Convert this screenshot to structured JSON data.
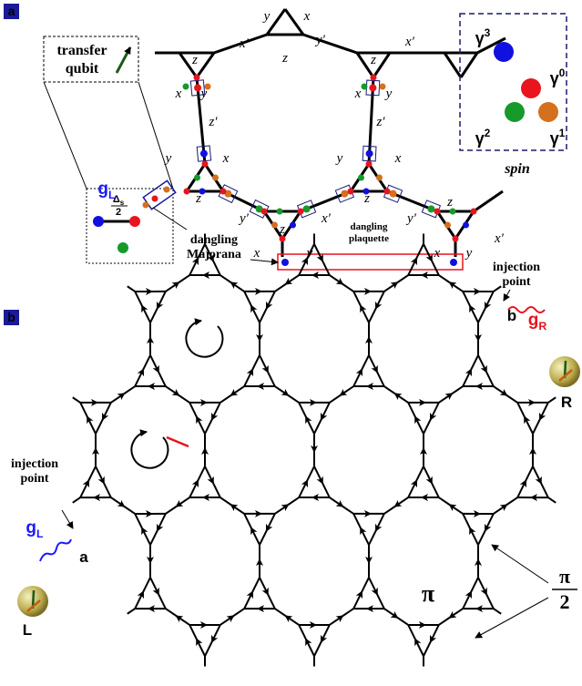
{
  "panel_a": {
    "label": "a",
    "transfer_qubit": [
      "transfer",
      "qubit"
    ],
    "coupling": {
      "base": "g",
      "sub": "L"
    },
    "gap": {
      "num_base": "Δ",
      "num_sub": "s",
      "den": "2"
    },
    "dangling_majorana": [
      "dangling",
      "Majorana"
    ],
    "dangling_plaquette": [
      "dangling",
      "plaquette"
    ],
    "bond_labels": [
      "y",
      "x",
      "x′",
      "y′",
      "x′",
      "z",
      "z",
      "z",
      "x",
      "y",
      "x",
      "y",
      "z′",
      "z′",
      "y",
      "x",
      "y",
      "x",
      "z",
      "z",
      "z",
      "y′",
      "x′",
      "y′",
      "z",
      "x",
      "y",
      "x",
      "y",
      "x′"
    ],
    "spin": {
      "title": "spin",
      "majoranas": [
        {
          "base": "γ",
          "sup": "3"
        },
        {
          "base": "γ",
          "sup": "0"
        },
        {
          "base": "γ",
          "sup": "2"
        },
        {
          "base": "γ",
          "sup": "1"
        }
      ]
    }
  },
  "panel_b": {
    "label": "b",
    "injection_points": [
      [
        "injection",
        "point"
      ],
      [
        "injection",
        "point"
      ]
    ],
    "leads": [
      {
        "name": "a",
        "coupling": {
          "base": "g",
          "sub": "L"
        },
        "reservoir": "L"
      },
      {
        "name": "b",
        "coupling": {
          "base": "g",
          "sub": "R"
        },
        "reservoir": "R"
      }
    ],
    "flux": [
      "π",
      {
        "num": "π",
        "den": "2"
      }
    ]
  }
}
